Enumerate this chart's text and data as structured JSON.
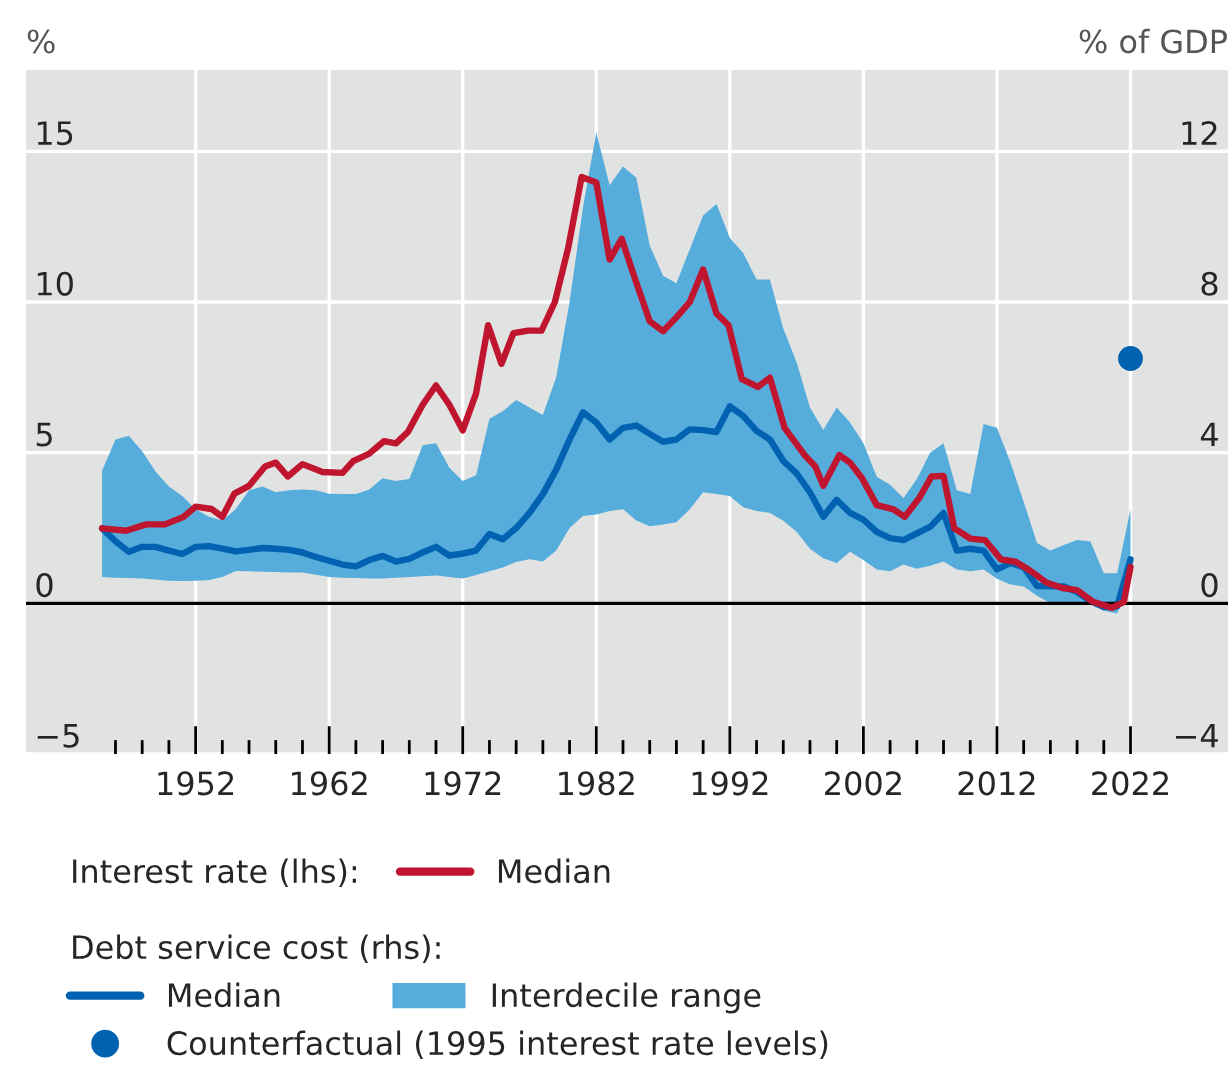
{
  "chart_data": {
    "type": "line",
    "ylabel": "%",
    "y2label": "% of GDP",
    "xlim": [
      1939.3,
      2029.3
    ],
    "xticks": [
      {
        "value": 1946,
        "label": null
      },
      {
        "value": 1948,
        "label": null
      },
      {
        "value": 1950,
        "label": null
      },
      1952,
      {
        "value": 1954,
        "label": null
      },
      {
        "value": 1956,
        "label": null
      },
      {
        "value": 1958,
        "label": null
      },
      {
        "value": 1960,
        "label": null
      },
      1962,
      {
        "value": 1964,
        "label": null
      },
      {
        "value": 1966,
        "label": null
      },
      {
        "value": 1968,
        "label": null
      },
      {
        "value": 1970,
        "label": null
      },
      1972,
      {
        "value": 1974,
        "label": null
      },
      {
        "value": 1976,
        "label": null
      },
      {
        "value": 1978,
        "label": null
      },
      {
        "value": 1980,
        "label": null
      },
      1982,
      {
        "value": 1984,
        "label": null
      },
      {
        "value": 1986,
        "label": null
      },
      {
        "value": 1988,
        "label": null
      },
      {
        "value": 1990,
        "label": null
      },
      1992,
      {
        "value": 1994,
        "label": null
      },
      {
        "value": 1996,
        "label": null
      },
      {
        "value": 1998,
        "label": null
      },
      {
        "value": 2000,
        "label": null
      },
      2002,
      {
        "value": 2004,
        "label": null
      },
      {
        "value": 2006,
        "label": null
      },
      {
        "value": 2008,
        "label": null
      },
      {
        "value": 2010,
        "label": null
      },
      2012,
      {
        "value": 2014,
        "label": null
      },
      {
        "value": 2016,
        "label": null
      },
      {
        "value": 2018,
        "label": null
      },
      {
        "value": 2020,
        "label": null
      },
      2022
    ],
    "ylim": [
      -5,
      17.7
    ],
    "yticks": [
      {
        "value": -5,
        "label": "−5"
      },
      0,
      5,
      10,
      15
    ],
    "y2lim": [
      -4,
      14.16
    ],
    "y2ticks": [
      {
        "value": -4,
        "label": "−4"
      },
      0,
      4,
      8,
      12
    ],
    "grid": true,
    "legend": "bottom",
    "ref_lines": [
      {
        "axis": "y",
        "value": 0,
        "label": null,
        "color": "#000000"
      }
    ],
    "annotations": [
      "Interest rate (lhs):",
      "Debt service cost (rhs):",
      "Interdecile range"
    ],
    "series": [
      {
        "name": "Median",
        "color": "#0062b0",
        "axis": "y2",
        "x": [
          1945,
          1946,
          1947,
          1948,
          1949,
          1950,
          1951,
          1952,
          1953,
          1954,
          1955,
          1956,
          1957,
          1958,
          1959,
          1960,
          1961,
          1962,
          1963,
          1964,
          1965,
          1966,
          1967,
          1968,
          1969,
          1970,
          1971,
          1972,
          1973,
          1974,
          1975,
          1976,
          1977,
          1978,
          1979,
          1980,
          1981,
          1982,
          1983,
          1984,
          1985,
          1986,
          1987,
          1988,
          1989,
          1990,
          1991,
          1992,
          1993,
          1994,
          1995,
          1996,
          1997,
          1998,
          1999,
          2000,
          2001,
          2002,
          2003,
          2004,
          2005,
          2006,
          2007,
          2008,
          2009,
          2010,
          2011,
          2012,
          2013,
          2014,
          2015,
          2016,
          2017,
          2018,
          2019,
          2020,
          2021,
          2022
        ],
        "values": [
          1.99,
          1.65,
          1.37,
          1.5,
          1.5,
          1.4,
          1.31,
          1.5,
          1.52,
          1.45,
          1.38,
          1.42,
          1.47,
          1.45,
          1.42,
          1.35,
          1.23,
          1.13,
          1.03,
          0.98,
          1.15,
          1.26,
          1.11,
          1.18,
          1.35,
          1.5,
          1.27,
          1.32,
          1.4,
          1.84,
          1.7,
          2.0,
          2.4,
          2.9,
          3.55,
          4.35,
          5.07,
          4.8,
          4.35,
          4.66,
          4.72,
          4.5,
          4.29,
          4.35,
          4.62,
          4.6,
          4.55,
          5.23,
          4.98,
          4.58,
          4.35,
          3.78,
          3.45,
          2.95,
          2.3,
          2.75,
          2.4,
          2.22,
          1.9,
          1.73,
          1.68,
          1.86,
          2.03,
          2.4,
          1.4,
          1.45,
          1.4,
          0.9,
          1.07,
          0.96,
          0.46,
          0.45,
          0.45,
          0.3,
          0.06,
          -0.1,
          -0.08,
          1.17
        ],
        "upper": [
          3.53,
          4.35,
          4.45,
          4.04,
          3.5,
          3.1,
          2.85,
          2.5,
          2.3,
          2.2,
          2.5,
          3.0,
          3.1,
          2.95,
          3.0,
          3.02,
          3.0,
          2.91,
          2.9,
          2.9,
          3.02,
          3.32,
          3.25,
          3.3,
          4.2,
          4.25,
          3.6,
          3.25,
          3.4,
          4.9,
          5.1,
          5.4,
          5.2,
          5.0,
          6.0,
          8.0,
          10.5,
          12.5,
          11.1,
          11.6,
          11.3,
          9.5,
          8.7,
          8.5,
          9.4,
          10.3,
          10.6,
          9.7,
          9.3,
          8.6,
          8.6,
          7.3,
          6.4,
          5.2,
          4.6,
          5.2,
          4.8,
          4.25,
          3.36,
          3.15,
          2.8,
          3.3,
          4.0,
          4.25,
          3.0,
          2.9,
          4.76,
          4.66,
          3.75,
          2.7,
          1.6,
          1.4,
          1.55,
          1.68,
          1.64,
          0.8,
          0.8,
          2.5
        ],
        "lower": [
          0.7,
          0.68,
          0.67,
          0.66,
          0.63,
          0.6,
          0.59,
          0.6,
          0.62,
          0.7,
          0.86,
          0.85,
          0.84,
          0.83,
          0.82,
          0.82,
          0.76,
          0.7,
          0.68,
          0.67,
          0.66,
          0.66,
          0.68,
          0.7,
          0.72,
          0.74,
          0.7,
          0.66,
          0.75,
          0.85,
          0.95,
          1.1,
          1.17,
          1.11,
          1.4,
          2.0,
          2.32,
          2.36,
          2.45,
          2.5,
          2.2,
          2.05,
          2.09,
          2.15,
          2.5,
          2.95,
          2.9,
          2.85,
          2.55,
          2.45,
          2.4,
          2.19,
          1.9,
          1.45,
          1.2,
          1.07,
          1.37,
          1.15,
          0.9,
          0.85,
          1.03,
          0.92,
          1.0,
          1.11,
          0.9,
          0.85,
          0.9,
          0.65,
          0.5,
          0.45,
          0.2,
          0.0,
          -0.05,
          -0.03,
          0.0,
          -0.2,
          -0.27,
          0.66
        ]
      },
      {
        "name": "Median",
        "color": "#c0152f",
        "x": [
          1945,
          1946.8,
          1948.3,
          1949.7,
          1951.1,
          1952,
          1953.2,
          1954,
          1954.9,
          1956,
          1957.2,
          1958,
          1958.9,
          1960,
          1961.5,
          1963,
          1963.8,
          1965,
          1966.1,
          1967,
          1967.9,
          1969,
          1970,
          1971,
          1972,
          1973,
          1973.9,
          1974.9,
          1975.8,
          1976.9,
          1977.9,
          1978.9,
          1979.9,
          1980.9,
          1982,
          1983,
          1983.9,
          1984.9,
          1986,
          1987,
          1988,
          1989,
          1990,
          1991,
          1991.9,
          1992.9,
          1994.1,
          1995,
          1996.1,
          1997.6,
          1998.4,
          1999,
          2000.2,
          2001,
          2001.9,
          2003,
          2004.2,
          2005.1,
          2006.2,
          2007.1,
          2008,
          2008.8,
          2010,
          2011.1,
          2012.3,
          2013.4,
          2014.5,
          2015.7,
          2016.9,
          2018,
          2019.2,
          2020.6,
          2021.5,
          2022
        ],
        "values": [
          2.49,
          2.41,
          2.62,
          2.62,
          2.87,
          3.21,
          3.13,
          2.87,
          3.64,
          3.9,
          4.54,
          4.67,
          4.21,
          4.62,
          4.36,
          4.33,
          4.72,
          4.97,
          5.38,
          5.31,
          5.69,
          6.59,
          7.23,
          6.59,
          5.74,
          6.97,
          9.23,
          7.95,
          8.97,
          9.05,
          9.05,
          10.0,
          11.8,
          14.15,
          13.97,
          11.41,
          12.1,
          10.77,
          9.36,
          9.03,
          9.49,
          10.0,
          11.08,
          9.62,
          9.23,
          7.44,
          7.18,
          7.49,
          5.82,
          4.92,
          4.54,
          3.9,
          4.92,
          4.67,
          4.15,
          3.26,
          3.13,
          2.87,
          3.51,
          4.21,
          4.23,
          2.49,
          2.15,
          2.1,
          1.46,
          1.38,
          1.08,
          0.69,
          0.51,
          0.44,
          0.05,
          -0.15,
          0.05,
          1.21
        ]
      },
      {
        "type": "scatter",
        "name": "Counterfactual (1995 interest rate levels)",
        "color": "#0062b0",
        "axis": "y2",
        "marker": "circle",
        "x": [
          2022
        ],
        "values": [
          6.5
        ]
      }
    ]
  }
}
